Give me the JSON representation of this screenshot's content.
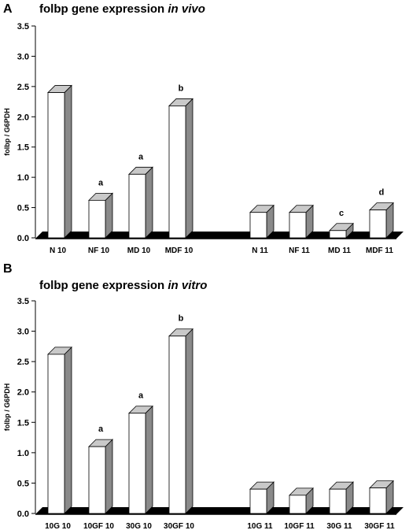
{
  "chart_data": [
    {
      "panel": "A",
      "type": "bar",
      "title": "folbp gene expression",
      "title_italic": "in vivo",
      "ylabel": "folbp / G6PDH",
      "ylim": [
        0,
        3.5
      ],
      "yticks": [
        "0.0",
        "0.5",
        "1.0",
        "1.5",
        "2.0",
        "2.5",
        "3.0",
        "3.5"
      ],
      "categories": [
        "N 10",
        "NF 10",
        "MD 10",
        "MDF 10",
        "N 11",
        "NF 11",
        "MD 11",
        "MDF 11"
      ],
      "values": [
        2.4,
        0.62,
        1.05,
        2.18,
        0.42,
        0.42,
        0.12,
        0.46
      ],
      "annotations": [
        "",
        "a",
        "a",
        "b",
        "",
        "",
        "c",
        "d"
      ]
    },
    {
      "panel": "B",
      "type": "bar",
      "title": "folbp gene expression",
      "title_italic": "in vitro",
      "ylabel": "folbp / G6PDH",
      "ylim": [
        0,
        3.5
      ],
      "yticks": [
        "0.0",
        "0.5",
        "1.0",
        "1.5",
        "2.0",
        "2.5",
        "3.0",
        "3.5"
      ],
      "categories": [
        "10G 10",
        "10GF 10",
        "30G 10",
        "30GF 10",
        "10G 11",
        "10GF 11",
        "30G 11",
        "30GF 11"
      ],
      "values": [
        2.62,
        1.1,
        1.65,
        2.92,
        0.4,
        0.3,
        0.4,
        0.42
      ],
      "annotations": [
        "",
        "a",
        "a",
        "b",
        "",
        "",
        "",
        ""
      ]
    }
  ]
}
